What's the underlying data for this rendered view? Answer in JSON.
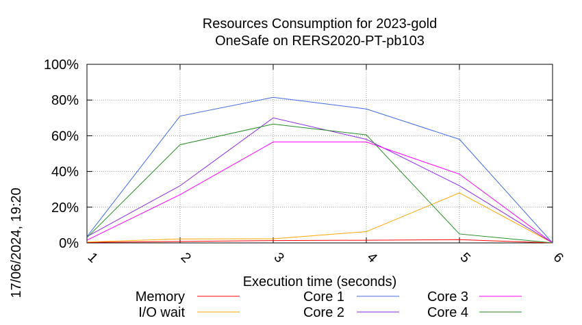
{
  "chart_data": {
    "type": "line",
    "title": "Resources Consumption for 2023-gold",
    "subtitle": "OneSafe on RERS2020-PT-pb103",
    "xlabel": "Execution time (seconds)",
    "ylabel": "",
    "side_label": "17/06/2024, 19:20",
    "x": [
      1,
      2,
      3,
      4,
      5,
      6
    ],
    "xlim": [
      1,
      6
    ],
    "ylim": [
      0,
      100
    ],
    "y_ticks": [
      0,
      20,
      40,
      60,
      80,
      100
    ],
    "y_tick_labels": [
      "0%",
      "20%",
      "40%",
      "60%",
      "80%",
      "100%"
    ],
    "x_tick_labels": [
      "1",
      "2",
      "3",
      "4",
      "5",
      "6"
    ],
    "grid": true,
    "legend_position": "bottom",
    "series": [
      {
        "name": "Memory",
        "color": "#ff0000",
        "values": [
          0.3,
          0.8,
          1.3,
          1.5,
          1.8,
          0
        ]
      },
      {
        "name": "I/O wait",
        "color": "#ffa500",
        "values": [
          0.5,
          2.2,
          2.3,
          6.3,
          28,
          0
        ]
      },
      {
        "name": "Core 1",
        "color": "#4169e1",
        "values": [
          3.5,
          71,
          81.5,
          75,
          58,
          0
        ]
      },
      {
        "name": "Core 2",
        "color": "#8a2be2",
        "values": [
          3.5,
          32,
          70,
          58,
          32,
          0
        ]
      },
      {
        "name": "Core 3",
        "color": "#ff00ff",
        "values": [
          1.5,
          27,
          56.5,
          56.5,
          38.5,
          0
        ]
      },
      {
        "name": "Core 4",
        "color": "#228b22",
        "values": [
          3,
          55,
          66.5,
          60.5,
          5,
          0
        ]
      }
    ]
  }
}
